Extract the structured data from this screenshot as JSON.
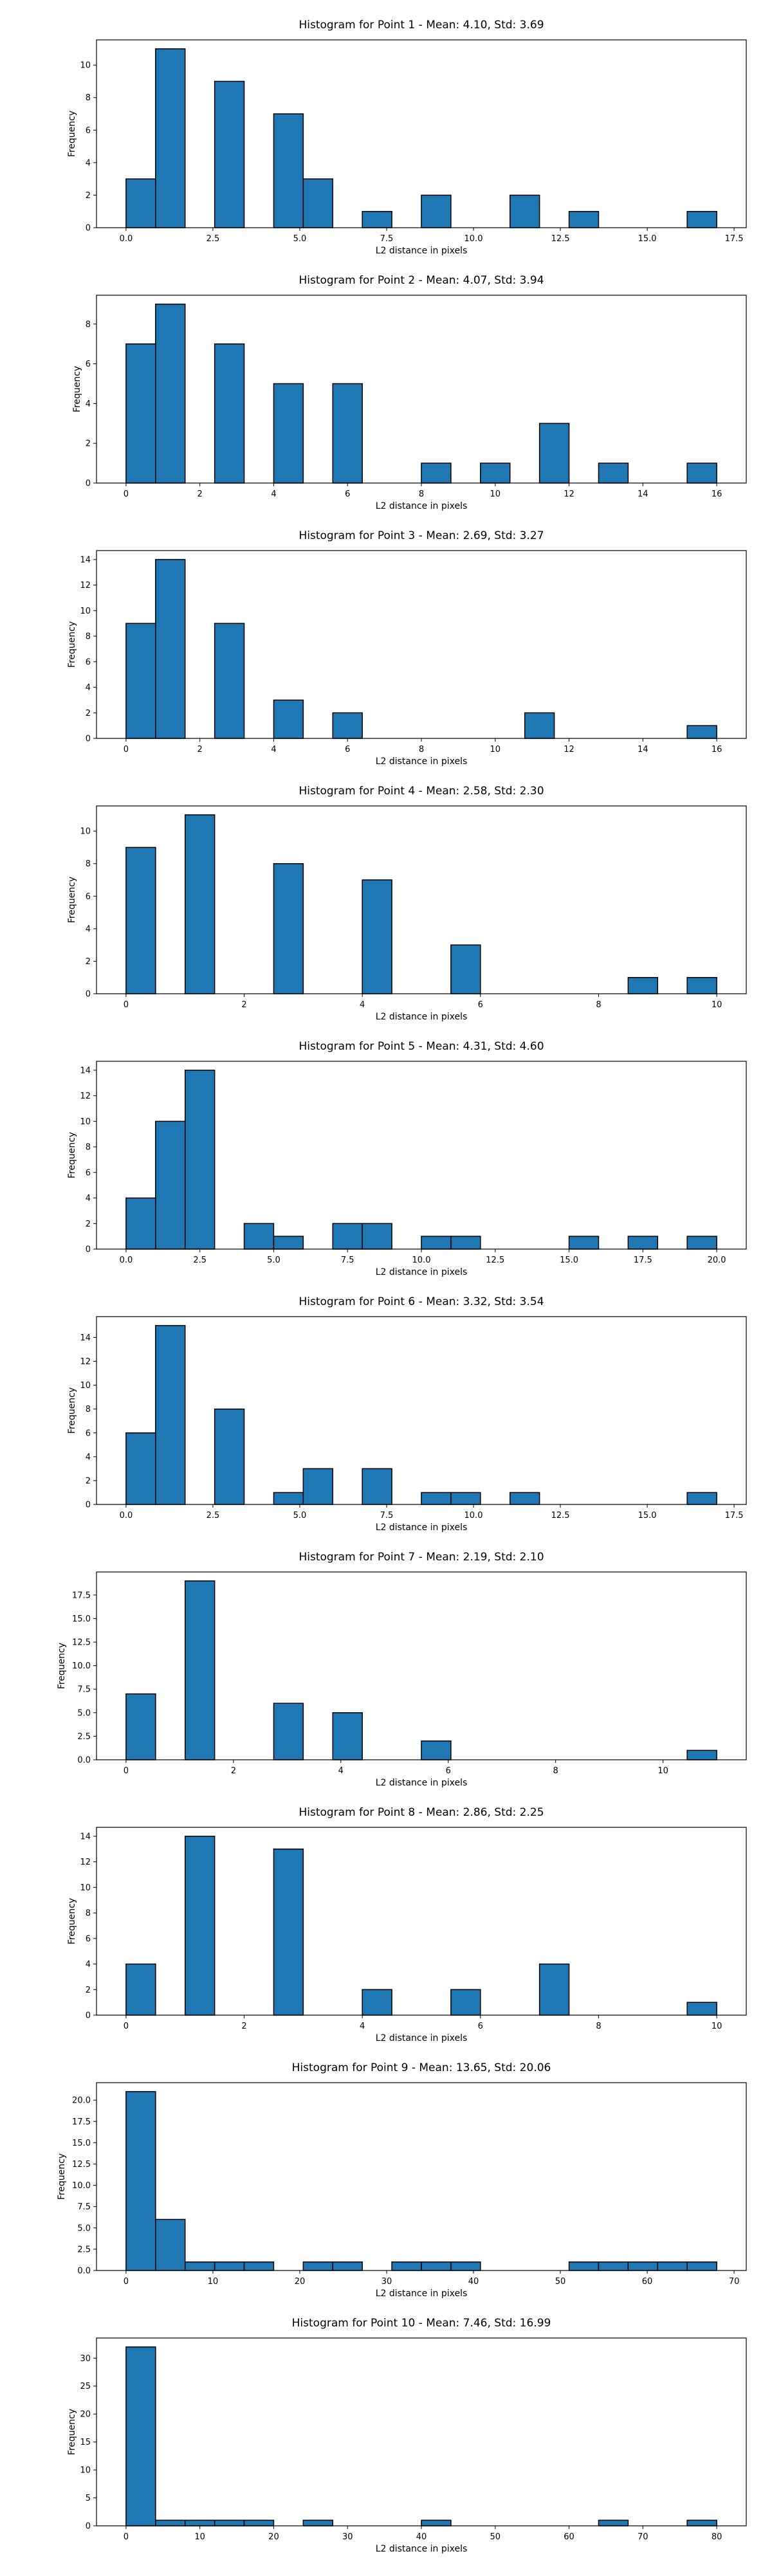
{
  "style": {
    "bar_color": "#1f77b4",
    "edge_color": "#000000"
  },
  "chart_data": [
    {
      "type": "bar",
      "title": "Histogram for Point 1 - Mean: 4.10, Std: 3.69",
      "xlabel": "L2 distance in pixels",
      "ylabel": "Frequency",
      "xlim": [
        -0.85,
        17.85
      ],
      "ylim": [
        0,
        11.55
      ],
      "xticks": [
        0.0,
        2.5,
        5.0,
        7.5,
        10.0,
        12.5,
        15.0,
        17.5
      ],
      "xtick_labels": [
        "0.0",
        "2.5",
        "5.0",
        "7.5",
        "10.0",
        "12.5",
        "15.0",
        "17.5"
      ],
      "yticks": [
        0,
        2,
        4,
        6,
        8,
        10
      ],
      "ytick_labels": [
        "0",
        "2",
        "4",
        "6",
        "8",
        "10"
      ],
      "bins": [
        [
          0.0,
          0.85,
          3
        ],
        [
          0.85,
          1.7,
          11
        ],
        [
          2.55,
          3.4,
          9
        ],
        [
          4.25,
          5.1,
          7
        ],
        [
          5.1,
          5.95,
          3
        ],
        [
          6.8,
          7.65,
          1
        ],
        [
          8.5,
          9.35,
          2
        ],
        [
          11.05,
          11.9,
          2
        ],
        [
          12.75,
          13.6,
          1
        ],
        [
          16.15,
          17.0,
          1
        ]
      ]
    },
    {
      "type": "bar",
      "title": "Histogram for Point 2 - Mean: 4.07, Std: 3.94",
      "xlabel": "L2 distance in pixels",
      "ylabel": "Frequency",
      "xlim": [
        -0.8,
        16.8
      ],
      "ylim": [
        0,
        9.45
      ],
      "xticks": [
        0,
        2,
        4,
        6,
        8,
        10,
        12,
        14,
        16
      ],
      "xtick_labels": [
        "0",
        "2",
        "4",
        "6",
        "8",
        "10",
        "12",
        "14",
        "16"
      ],
      "yticks": [
        0,
        2,
        4,
        6,
        8
      ],
      "ytick_labels": [
        "0",
        "2",
        "4",
        "6",
        "8"
      ],
      "bins": [
        [
          0.0,
          0.8,
          7
        ],
        [
          0.8,
          1.6,
          9
        ],
        [
          2.4,
          3.2,
          7
        ],
        [
          4.0,
          4.8,
          5
        ],
        [
          5.6,
          6.4,
          5
        ],
        [
          8.0,
          8.8,
          1
        ],
        [
          9.6,
          10.4,
          1
        ],
        [
          11.2,
          12.0,
          3
        ],
        [
          12.8,
          13.6,
          1
        ],
        [
          15.2,
          16.0,
          1
        ]
      ]
    },
    {
      "type": "bar",
      "title": "Histogram for Point 3 - Mean: 2.69, Std: 3.27",
      "xlabel": "L2 distance in pixels",
      "ylabel": "Frequency",
      "xlim": [
        -0.8,
        16.8
      ],
      "ylim": [
        0,
        14.7
      ],
      "xticks": [
        0,
        2,
        4,
        6,
        8,
        10,
        12,
        14,
        16
      ],
      "xtick_labels": [
        "0",
        "2",
        "4",
        "6",
        "8",
        "10",
        "12",
        "14",
        "16"
      ],
      "yticks": [
        0,
        2,
        4,
        6,
        8,
        10,
        12,
        14
      ],
      "ytick_labels": [
        "0",
        "2",
        "4",
        "6",
        "8",
        "10",
        "12",
        "14"
      ],
      "bins": [
        [
          0.0,
          0.8,
          9
        ],
        [
          0.8,
          1.6,
          14
        ],
        [
          2.4,
          3.2,
          9
        ],
        [
          4.0,
          4.8,
          3
        ],
        [
          5.6,
          6.4,
          2
        ],
        [
          10.8,
          11.6,
          2
        ],
        [
          15.2,
          16.0,
          1
        ]
      ]
    },
    {
      "type": "bar",
      "title": "Histogram for Point 4 - Mean: 2.58, Std: 2.30",
      "xlabel": "L2 distance in pixels",
      "ylabel": "Frequency",
      "xlim": [
        -0.5,
        10.5
      ],
      "ylim": [
        0,
        11.55
      ],
      "xticks": [
        0,
        2,
        4,
        6,
        8,
        10
      ],
      "xtick_labels": [
        "0",
        "2",
        "4",
        "6",
        "8",
        "10"
      ],
      "yticks": [
        0,
        2,
        4,
        6,
        8,
        10
      ],
      "ytick_labels": [
        "0",
        "2",
        "4",
        "6",
        "8",
        "10"
      ],
      "bins": [
        [
          0.0,
          0.5,
          9
        ],
        [
          1.0,
          1.5,
          11
        ],
        [
          2.5,
          3.0,
          8
        ],
        [
          4.0,
          4.5,
          7
        ],
        [
          5.5,
          6.0,
          3
        ],
        [
          8.5,
          9.0,
          1
        ],
        [
          9.5,
          10.0,
          1
        ]
      ]
    },
    {
      "type": "bar",
      "title": "Histogram for Point 5 - Mean: 4.31, Std: 4.60",
      "xlabel": "L2 distance in pixels",
      "ylabel": "Frequency",
      "xlim": [
        -1.0,
        21.0
      ],
      "ylim": [
        0,
        14.7
      ],
      "xticks": [
        0.0,
        2.5,
        5.0,
        7.5,
        10.0,
        12.5,
        15.0,
        17.5,
        20.0
      ],
      "xtick_labels": [
        "0.0",
        "2.5",
        "5.0",
        "7.5",
        "10.0",
        "12.5",
        "15.0",
        "17.5",
        "20.0"
      ],
      "yticks": [
        0,
        2,
        4,
        6,
        8,
        10,
        12,
        14
      ],
      "ytick_labels": [
        "0",
        "2",
        "4",
        "6",
        "8",
        "10",
        "12",
        "14"
      ],
      "bins": [
        [
          0.0,
          1.0,
          4
        ],
        [
          1.0,
          2.0,
          10
        ],
        [
          2.0,
          3.0,
          14
        ],
        [
          4.0,
          5.0,
          2
        ],
        [
          5.0,
          6.0,
          1
        ],
        [
          7.0,
          8.0,
          2
        ],
        [
          8.0,
          9.0,
          2
        ],
        [
          10.0,
          11.0,
          1
        ],
        [
          11.0,
          12.0,
          1
        ],
        [
          15.0,
          16.0,
          1
        ],
        [
          17.0,
          18.0,
          1
        ],
        [
          19.0,
          20.0,
          1
        ]
      ]
    },
    {
      "type": "bar",
      "title": "Histogram for Point 6 - Mean: 3.32, Std: 3.54",
      "xlabel": "L2 distance in pixels",
      "ylabel": "Frequency",
      "xlim": [
        -0.85,
        17.85
      ],
      "ylim": [
        0,
        15.75
      ],
      "xticks": [
        0.0,
        2.5,
        5.0,
        7.5,
        10.0,
        12.5,
        15.0,
        17.5
      ],
      "xtick_labels": [
        "0.0",
        "2.5",
        "5.0",
        "7.5",
        "10.0",
        "12.5",
        "15.0",
        "17.5"
      ],
      "yticks": [
        0,
        2,
        4,
        6,
        8,
        10,
        12,
        14
      ],
      "ytick_labels": [
        "0",
        "2",
        "4",
        "6",
        "8",
        "10",
        "12",
        "14"
      ],
      "bins": [
        [
          0.0,
          0.85,
          6
        ],
        [
          0.85,
          1.7,
          15
        ],
        [
          2.55,
          3.4,
          8
        ],
        [
          4.25,
          5.1,
          1
        ],
        [
          5.1,
          5.95,
          3
        ],
        [
          6.8,
          7.65,
          3
        ],
        [
          8.5,
          9.35,
          1
        ],
        [
          9.35,
          10.2,
          1
        ],
        [
          11.05,
          11.9,
          1
        ],
        [
          16.15,
          17.0,
          1
        ]
      ]
    },
    {
      "type": "bar",
      "title": "Histogram for Point 7 - Mean: 2.19, Std: 2.10",
      "xlabel": "L2 distance in pixels",
      "ylabel": "Frequency",
      "xlim": [
        -0.55,
        11.55
      ],
      "ylim": [
        0,
        19.95
      ],
      "xticks": [
        0,
        2,
        4,
        6,
        8,
        10
      ],
      "xtick_labels": [
        "0",
        "2",
        "4",
        "6",
        "8",
        "10"
      ],
      "yticks": [
        0.0,
        2.5,
        5.0,
        7.5,
        10.0,
        12.5,
        15.0,
        17.5
      ],
      "ytick_labels": [
        "0.0",
        "2.5",
        "5.0",
        "7.5",
        "10.0",
        "12.5",
        "15.0",
        "17.5"
      ],
      "bins": [
        [
          0.0,
          0.55,
          7
        ],
        [
          1.1,
          1.65,
          19
        ],
        [
          2.75,
          3.3,
          6
        ],
        [
          3.85,
          4.4,
          5
        ],
        [
          5.5,
          6.05,
          2
        ],
        [
          10.45,
          11.0,
          1
        ]
      ]
    },
    {
      "type": "bar",
      "title": "Histogram for Point 8 - Mean: 2.86, Std: 2.25",
      "xlabel": "L2 distance in pixels",
      "ylabel": "Frequency",
      "xlim": [
        -0.5,
        10.5
      ],
      "ylim": [
        0,
        14.7
      ],
      "xticks": [
        0,
        2,
        4,
        6,
        8,
        10
      ],
      "xtick_labels": [
        "0",
        "2",
        "4",
        "6",
        "8",
        "10"
      ],
      "yticks": [
        0,
        2,
        4,
        6,
        8,
        10,
        12,
        14
      ],
      "ytick_labels": [
        "0",
        "2",
        "4",
        "6",
        "8",
        "10",
        "12",
        "14"
      ],
      "bins": [
        [
          0.0,
          0.5,
          4
        ],
        [
          1.0,
          1.5,
          14
        ],
        [
          2.5,
          3.0,
          13
        ],
        [
          4.0,
          4.5,
          2
        ],
        [
          5.5,
          6.0,
          2
        ],
        [
          7.0,
          7.5,
          4
        ],
        [
          9.5,
          10.0,
          1
        ]
      ]
    },
    {
      "type": "bar",
      "title": "Histogram for Point 9 - Mean: 13.65, Std: 20.06",
      "xlabel": "L2 distance in pixels",
      "ylabel": "Frequency",
      "xlim": [
        -3.4,
        71.4
      ],
      "ylim": [
        0,
        22.05
      ],
      "xticks": [
        0,
        10,
        20,
        30,
        40,
        50,
        60,
        70
      ],
      "xtick_labels": [
        "0",
        "10",
        "20",
        "30",
        "40",
        "50",
        "60",
        "70"
      ],
      "yticks": [
        0.0,
        2.5,
        5.0,
        7.5,
        10.0,
        12.5,
        15.0,
        17.5,
        20.0
      ],
      "ytick_labels": [
        "0.0",
        "2.5",
        "5.0",
        "7.5",
        "10.0",
        "12.5",
        "15.0",
        "17.5",
        "20.0"
      ],
      "bins": [
        [
          0.0,
          3.4,
          21
        ],
        [
          3.4,
          6.8,
          6
        ],
        [
          6.8,
          10.2,
          1
        ],
        [
          10.2,
          13.6,
          1
        ],
        [
          13.6,
          17.0,
          1
        ],
        [
          20.4,
          23.8,
          1
        ],
        [
          23.8,
          27.2,
          1
        ],
        [
          30.6,
          34.0,
          1
        ],
        [
          34.0,
          37.4,
          1
        ],
        [
          37.4,
          40.8,
          1
        ],
        [
          51.0,
          54.4,
          1
        ],
        [
          54.4,
          57.8,
          1
        ],
        [
          57.8,
          61.2,
          1
        ],
        [
          61.2,
          64.6,
          1
        ],
        [
          64.6,
          68.0,
          1
        ]
      ]
    },
    {
      "type": "bar",
      "title": "Histogram for Point 10 - Mean: 7.46, Std: 16.99",
      "xlabel": "L2 distance in pixels",
      "ylabel": "Frequency",
      "xlim": [
        -4.0,
        84.0
      ],
      "ylim": [
        0,
        33.6
      ],
      "xticks": [
        0,
        10,
        20,
        30,
        40,
        50,
        60,
        70,
        80
      ],
      "xtick_labels": [
        "0",
        "10",
        "20",
        "30",
        "40",
        "50",
        "60",
        "70",
        "80"
      ],
      "yticks": [
        0,
        5,
        10,
        15,
        20,
        25,
        30
      ],
      "ytick_labels": [
        "0",
        "5",
        "10",
        "15",
        "20",
        "25",
        "30"
      ],
      "bins": [
        [
          0.0,
          4.0,
          32
        ],
        [
          4.0,
          8.0,
          1
        ],
        [
          8.0,
          12.0,
          1
        ],
        [
          12.0,
          16.0,
          1
        ],
        [
          16.0,
          20.0,
          1
        ],
        [
          24.0,
          28.0,
          1
        ],
        [
          40.0,
          44.0,
          1
        ],
        [
          64.0,
          68.0,
          1
        ],
        [
          76.0,
          80.0,
          1
        ]
      ]
    }
  ]
}
